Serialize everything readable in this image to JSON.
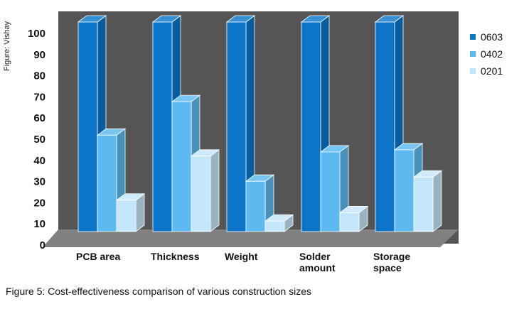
{
  "credit": "Figure: Vishay",
  "caption": "Figure 5: Cost-effectiveness comparison of various construction sizes",
  "chart_data": {
    "type": "bar",
    "categories": [
      [
        "PCB area"
      ],
      [
        "Thickness"
      ],
      [
        "Weight"
      ],
      [
        "Solder",
        "amount"
      ],
      [
        "Storage",
        "space"
      ]
    ],
    "series": [
      {
        "name": "0603",
        "values": [
          100,
          100,
          100,
          100,
          100
        ],
        "color": "#0a75c9"
      },
      {
        "name": "0402",
        "values": [
          46,
          62,
          24,
          38,
          39
        ],
        "color": "#5cbaf0"
      },
      {
        "name": "0201",
        "values": [
          15,
          36,
          5,
          9,
          26
        ],
        "color": "#c4e6fa"
      }
    ],
    "yticks": [
      0,
      10,
      20,
      30,
      40,
      50,
      60,
      70,
      80,
      90,
      100
    ],
    "ylim": [
      0,
      100
    ],
    "legend_position": "right",
    "background": "#555555",
    "floor_color": "#808080"
  }
}
